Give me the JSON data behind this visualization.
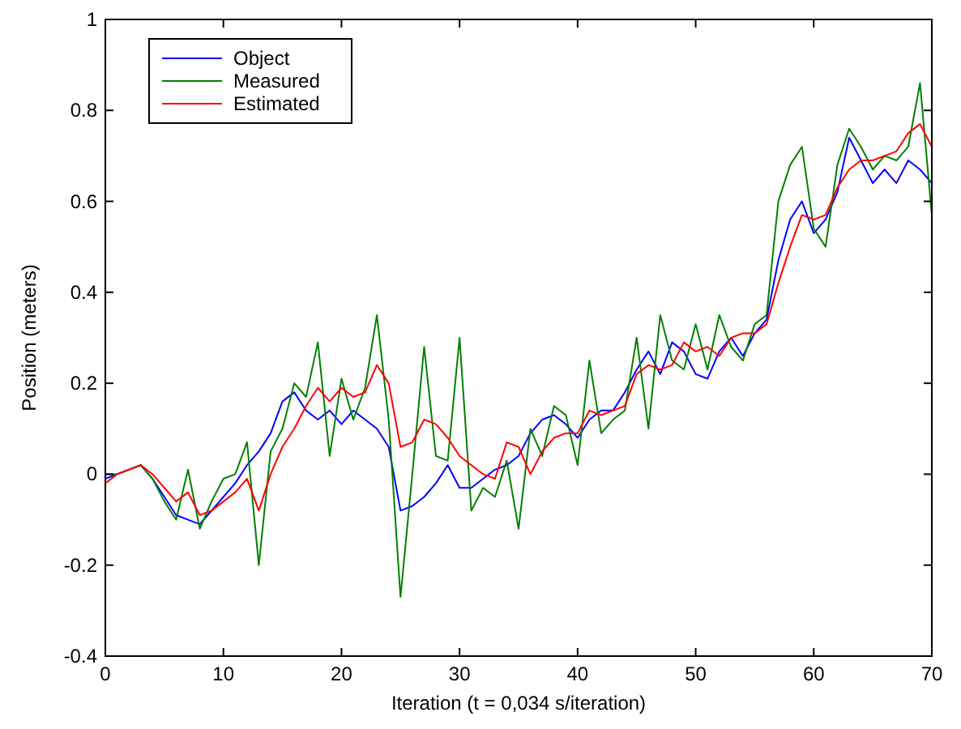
{
  "chart_data": {
    "type": "line",
    "xlabel": "Iteration (t = 0,034 s/iteration)",
    "ylabel": "Position (meters)",
    "x": [
      0,
      1,
      2,
      3,
      4,
      5,
      6,
      7,
      8,
      9,
      10,
      11,
      12,
      13,
      14,
      15,
      16,
      17,
      18,
      19,
      20,
      21,
      22,
      23,
      24,
      25,
      26,
      27,
      28,
      29,
      30,
      31,
      32,
      33,
      34,
      35,
      36,
      37,
      38,
      39,
      40,
      41,
      42,
      43,
      44,
      45,
      46,
      47,
      48,
      49,
      50,
      51,
      52,
      53,
      54,
      55,
      56,
      57,
      58,
      59,
      60,
      61,
      62,
      63,
      64,
      65,
      66,
      67,
      68,
      69,
      70
    ],
    "series": [
      {
        "name": "Object",
        "color": "#0000ff",
        "values": [
          -0.01,
          0,
          0.01,
          0.02,
          -0.01,
          -0.05,
          -0.09,
          -0.1,
          -0.11,
          -0.08,
          -0.05,
          -0.02,
          0.02,
          0.05,
          0.09,
          0.16,
          0.18,
          0.14,
          0.12,
          0.14,
          0.11,
          0.14,
          0.12,
          0.1,
          0.06,
          -0.08,
          -0.07,
          -0.05,
          -0.02,
          0.02,
          -0.03,
          -0.03,
          -0.01,
          0.01,
          0.02,
          0.04,
          0.09,
          0.12,
          0.13,
          0.11,
          0.08,
          0.12,
          0.14,
          0.14,
          0.18,
          0.23,
          0.27,
          0.22,
          0.29,
          0.27,
          0.22,
          0.21,
          0.27,
          0.3,
          0.26,
          0.31,
          0.34,
          0.47,
          0.56,
          0.6,
          0.53,
          0.56,
          0.62,
          0.74,
          0.69,
          0.64,
          0.67,
          0.64,
          0.69,
          0.67,
          0.64
        ]
      },
      {
        "name": "Measured",
        "color": "#008000",
        "values": [
          0,
          0,
          0.01,
          0.02,
          -0.01,
          -0.06,
          -0.1,
          0.01,
          -0.12,
          -0.06,
          -0.01,
          0,
          0.07,
          -0.2,
          0.05,
          0.1,
          0.2,
          0.17,
          0.29,
          0.04,
          0.21,
          0.12,
          0.19,
          0.35,
          0.12,
          -0.27,
          0,
          0.28,
          0.04,
          0.03,
          0.3,
          -0.08,
          -0.03,
          -0.05,
          0.03,
          -0.12,
          0.1,
          0.04,
          0.15,
          0.13,
          0.02,
          0.25,
          0.09,
          0.12,
          0.14,
          0.3,
          0.1,
          0.35,
          0.25,
          0.23,
          0.33,
          0.23,
          0.35,
          0.28,
          0.25,
          0.33,
          0.35,
          0.6,
          0.68,
          0.72,
          0.54,
          0.5,
          0.68,
          0.76,
          0.72,
          0.67,
          0.7,
          0.69,
          0.72,
          0.86,
          0.57
        ]
      },
      {
        "name": "Estimated",
        "color": "#ff0000",
        "values": [
          -0.02,
          0,
          0.01,
          0.02,
          0,
          -0.03,
          -0.06,
          -0.04,
          -0.09,
          -0.08,
          -0.06,
          -0.04,
          -0.01,
          -0.08,
          0,
          0.06,
          0.1,
          0.15,
          0.19,
          0.16,
          0.19,
          0.17,
          0.18,
          0.24,
          0.2,
          0.06,
          0.07,
          0.12,
          0.11,
          0.08,
          0.04,
          0.02,
          0,
          -0.01,
          0.07,
          0.06,
          0,
          0.05,
          0.08,
          0.09,
          0.09,
          0.14,
          0.13,
          0.14,
          0.15,
          0.22,
          0.24,
          0.23,
          0.24,
          0.29,
          0.27,
          0.28,
          0.26,
          0.3,
          0.31,
          0.31,
          0.33,
          0.42,
          0.5,
          0.57,
          0.56,
          0.57,
          0.63,
          0.67,
          0.69,
          0.69,
          0.7,
          0.71,
          0.75,
          0.77,
          0.72
        ]
      }
    ],
    "xlim": [
      0,
      70
    ],
    "xticks": [
      0,
      10,
      20,
      30,
      40,
      50,
      60,
      70
    ],
    "ylim": [
      -0.4,
      1
    ],
    "yticks": [
      -0.4,
      -0.2,
      0,
      0.2,
      0.4,
      0.6,
      0.8,
      1
    ],
    "legend": "top left",
    "grid": false,
    "marker": "none",
    "line_style": "solid"
  }
}
